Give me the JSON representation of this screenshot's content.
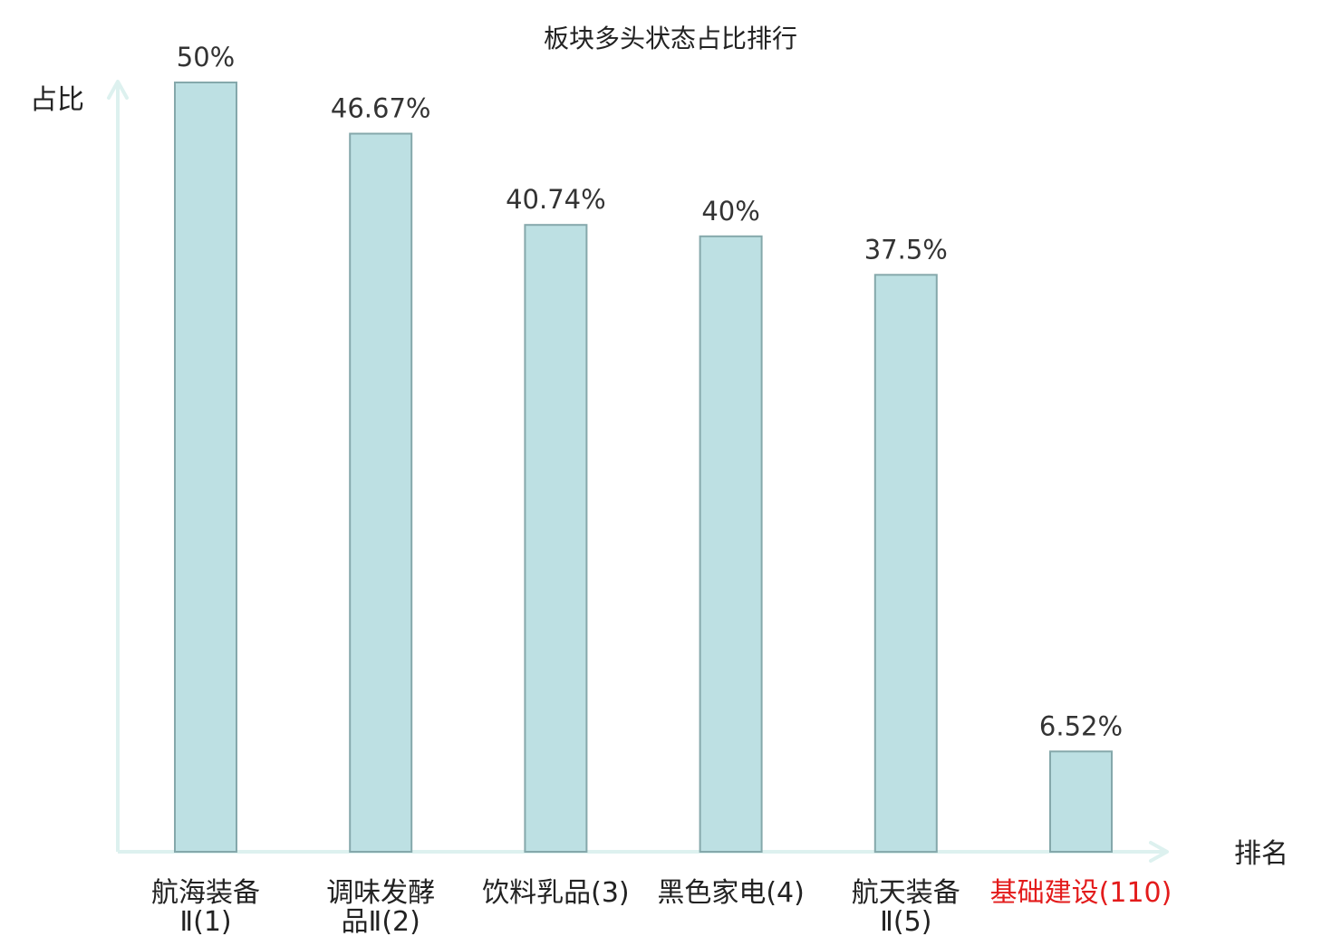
{
  "chart_data": {
    "type": "bar",
    "title": "板块多头状态占比排行",
    "ylabel": "占比",
    "xlabel": "排名",
    "categories": [
      {
        "lines": [
          "航海装备",
          "Ⅱ(1)"
        ],
        "highlight": false
      },
      {
        "lines": [
          "调味发酵",
          "品Ⅱ(2)"
        ],
        "highlight": false
      },
      {
        "lines": [
          "饮料乳品(3)"
        ],
        "highlight": false
      },
      {
        "lines": [
          "黑色家电(4)"
        ],
        "highlight": false
      },
      {
        "lines": [
          "航天装备",
          "Ⅱ(5)"
        ],
        "highlight": false
      },
      {
        "lines": [
          "基础建设(110)"
        ],
        "highlight": true
      }
    ],
    "values": [
      50,
      46.67,
      40.74,
      40,
      37.5,
      6.52
    ],
    "value_labels": [
      "50%",
      "46.67%",
      "40.74%",
      "40%",
      "37.5%",
      "6.52%"
    ],
    "ylim": [
      0,
      50
    ],
    "grid": false,
    "legend": "none",
    "colors": {
      "bar_fill": "#bde0e3",
      "bar_stroke": "#85a8ab",
      "axis": "#ddf1ef",
      "text": "#333333",
      "category_text": "#222222",
      "highlight": "#e31b1b"
    }
  }
}
